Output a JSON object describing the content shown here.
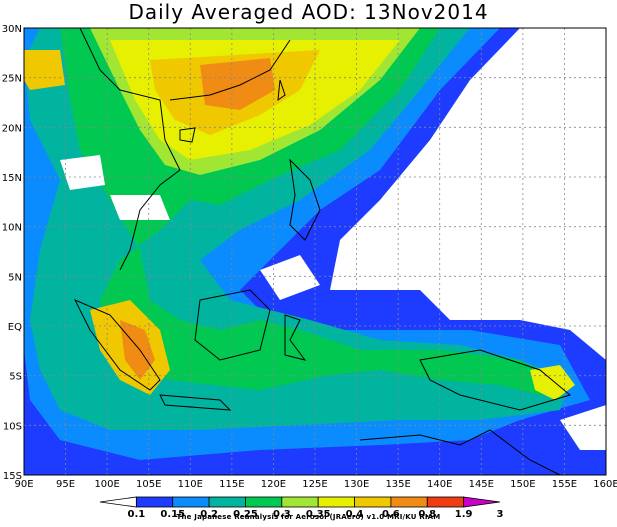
{
  "title": "Daily Averaged AOD: 13Nov2014",
  "map": {
    "lon_range": [
      90,
      160
    ],
    "lat_range": [
      -15,
      30
    ],
    "lon_ticks": [
      "90E",
      "95E",
      "100E",
      "105E",
      "110E",
      "115E",
      "120E",
      "125E",
      "130E",
      "135E",
      "140E",
      "145E",
      "150E",
      "155E",
      "160E"
    ],
    "lat_ticks": [
      "15S",
      "10S",
      "5S",
      "EQ",
      "5N",
      "10N",
      "15N",
      "20N",
      "25N",
      "30N"
    ],
    "grid": true
  },
  "colorbar": {
    "labels": [
      "0.1",
      "0.15",
      "0.2",
      "0.25",
      "0.3",
      "0.35",
      "0.4",
      "0.6",
      "0.8",
      "1.9",
      "3"
    ],
    "colors": [
      "#ffffff",
      "#1e3cff",
      "#0a8cff",
      "#00b4a0",
      "#00c850",
      "#a0e632",
      "#e6f000",
      "#f0c800",
      "#f08c14",
      "#f03c14",
      "#c800c8"
    ]
  },
  "credit": "The Japanese Reanalysis for Aerosol (JRAero) v1.0 MRI/KU RIAM"
}
